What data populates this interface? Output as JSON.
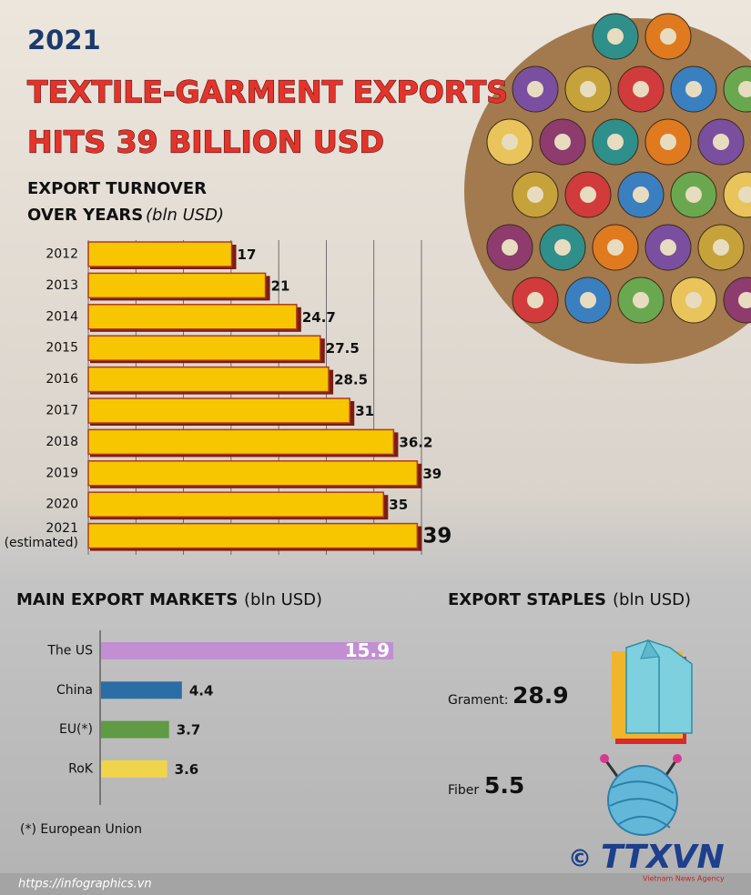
{
  "header": {
    "year": "2021",
    "title_line1": "TEXTILE-GARMENT EXPORTS",
    "title_line2": "HITS 39 BILLION USD"
  },
  "chart_data": [
    {
      "type": "hbar",
      "title": "EXPORT TURNOVER\nOVER YEARS",
      "unit": "(bln USD)",
      "categories": [
        "2012",
        "2013",
        "2014",
        "2015",
        "2016",
        "2017",
        "2018",
        "2019",
        "2020",
        "2021\n(estimated)"
      ],
      "values": [
        17,
        21,
        24.7,
        27.5,
        28.5,
        31,
        36.2,
        39,
        35,
        39
      ],
      "color": "#f7c600",
      "xlim": [
        0,
        39.5
      ]
    },
    {
      "type": "hbar",
      "title": "MAIN EXPORT MARKETS",
      "unit": "(bln USD)",
      "categories": [
        "The US",
        "China",
        "EU(*)",
        "RoK"
      ],
      "values": [
        15.9,
        4.4,
        3.7,
        3.6
      ],
      "colors": [
        "#c28fd3",
        "#2b6ea5",
        "#5f9a45",
        "#f0d44c"
      ],
      "xlim": [
        0,
        15.9
      ],
      "footnote": "(*) European Union"
    }
  ],
  "staples": {
    "title": "EXPORT STAPLES",
    "unit": "(bln USD)",
    "items": [
      {
        "label": "Grament:",
        "value": 28.9
      },
      {
        "label": "Fiber",
        "value": 5.5
      }
    ]
  },
  "footer": {
    "source": "https://infographics.vn",
    "copyright": "©",
    "logo": "TTXVN",
    "agency": "Vietnam News Agency"
  }
}
